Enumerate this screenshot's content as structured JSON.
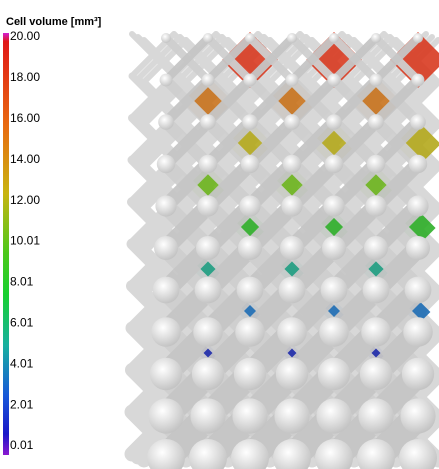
{
  "colorbar": {
    "title": "Cell volume [mm³]",
    "ticks": [
      "20.00",
      "18.00",
      "16.00",
      "14.00",
      "12.00",
      "10.01",
      "8.01",
      "6.01",
      "4.01",
      "2.01",
      "0.01"
    ]
  }
}
